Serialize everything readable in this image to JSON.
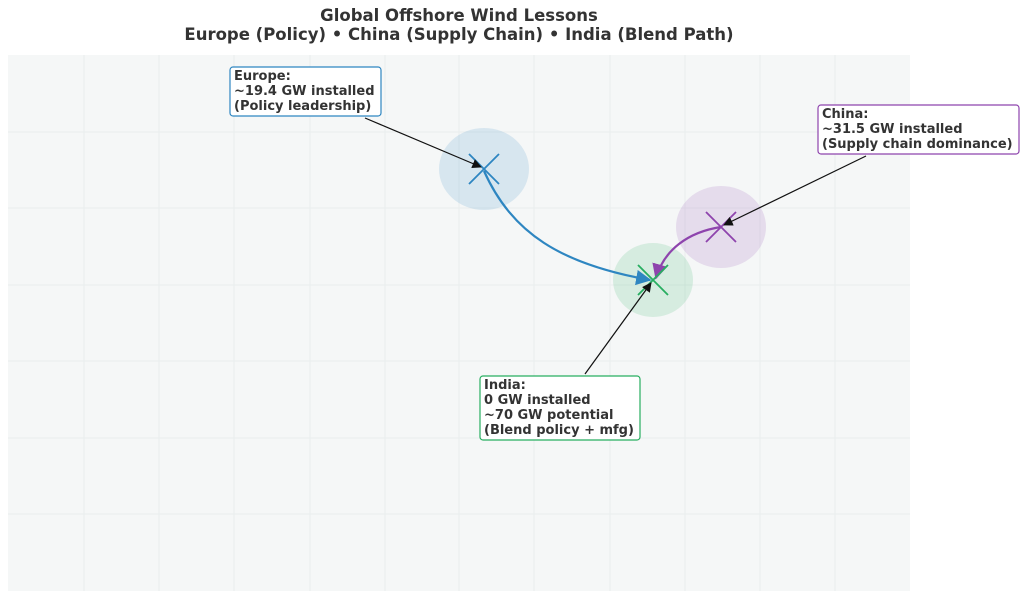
{
  "title": {
    "line1": "Global Offshore Wind Lessons",
    "line2": "Europe (Policy) • China (Supply Chain) • India (Blend Path)"
  },
  "colors": {
    "europe": "#2e86c1",
    "china": "#8e44ad",
    "india": "#27ae60",
    "plot_background": "#f5f7f7",
    "grid": "#e9edee",
    "text": "#333333"
  },
  "chart_data": {
    "type": "scatter",
    "title": "Global Offshore Wind Lessons\nEurope (Policy) • China (Supply Chain) • India (Blend Path)",
    "xlabel": "",
    "ylabel": "",
    "axes_visible": false,
    "grid": true,
    "legend": "none",
    "points": [
      {
        "id": "europe",
        "color_key": "europe",
        "annotation": [
          "Europe:",
          "~19.4 GW installed",
          "(Policy leadership)"
        ]
      },
      {
        "id": "china",
        "color_key": "china",
        "annotation": [
          "China:",
          "~31.5 GW installed",
          "(Supply chain dominance)"
        ]
      },
      {
        "id": "india",
        "color_key": "india",
        "annotation": [
          "India:",
          "0 GW installed",
          "~70 GW potential",
          "(Blend policy + mfg)"
        ]
      }
    ],
    "arrows": [
      {
        "from": "europe",
        "to": "india",
        "color_key": "europe"
      },
      {
        "from": "china",
        "to": "india",
        "color_key": "china"
      }
    ]
  }
}
